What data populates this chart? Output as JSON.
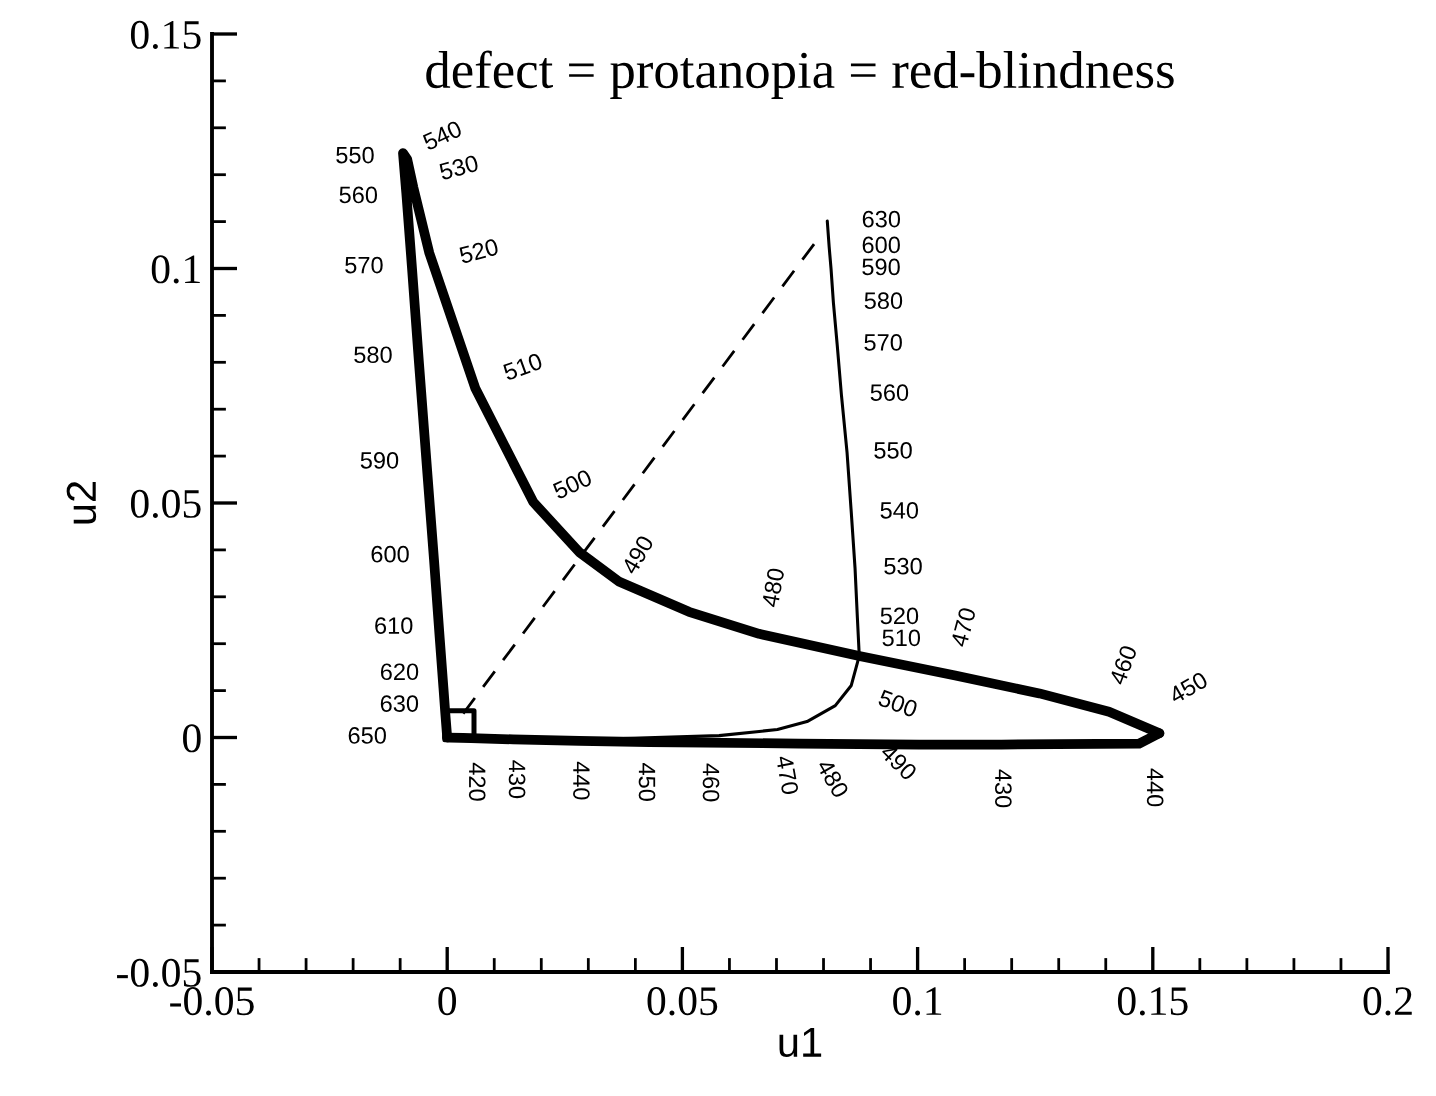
{
  "chart_data": {
    "type": "line",
    "title": "defect = protanopia = red-blindness",
    "xlabel": "u1",
    "ylabel": "u2",
    "xlim": [
      -0.05,
      0.2
    ],
    "ylim": [
      -0.05,
      0.15
    ],
    "xticks": [
      -0.05,
      {
        "value": -0.04,
        "label": null
      },
      {
        "value": -0.03,
        "label": null
      },
      {
        "value": -0.02,
        "label": null
      },
      {
        "value": -0.01,
        "label": null
      },
      0,
      {
        "value": 0.01,
        "label": null
      },
      {
        "value": 0.02,
        "label": null
      },
      {
        "value": 0.03,
        "label": null
      },
      {
        "value": 0.04,
        "label": null
      },
      0.05,
      {
        "value": 0.06,
        "label": null
      },
      {
        "value": 0.07,
        "label": null
      },
      {
        "value": 0.08,
        "label": null
      },
      {
        "value": 0.09,
        "label": null
      },
      0.1,
      {
        "value": 0.11,
        "label": null
      },
      {
        "value": 0.12,
        "label": null
      },
      {
        "value": 0.13,
        "label": null
      },
      {
        "value": 0.14,
        "label": null
      },
      0.15,
      {
        "value": 0.16,
        "label": null
      },
      {
        "value": 0.17,
        "label": null
      },
      {
        "value": 0.18,
        "label": null
      },
      {
        "value": 0.19,
        "label": null
      },
      0.2
    ],
    "yticks": [
      -0.05,
      {
        "value": -0.04,
        "label": null
      },
      {
        "value": -0.03,
        "label": null
      },
      {
        "value": -0.02,
        "label": null
      },
      {
        "value": -0.01,
        "label": null
      },
      0,
      {
        "value": 0.01,
        "label": null
      },
      {
        "value": 0.02,
        "label": null
      },
      {
        "value": 0.03,
        "label": null
      },
      {
        "value": 0.04,
        "label": null
      },
      0.05,
      {
        "value": 0.06,
        "label": null
      },
      {
        "value": 0.07,
        "label": null
      },
      {
        "value": 0.08,
        "label": null
      },
      {
        "value": 0.09,
        "label": null
      },
      0.1,
      {
        "value": 0.11,
        "label": null
      },
      {
        "value": 0.12,
        "label": null
      },
      {
        "value": 0.13,
        "label": null
      },
      {
        "value": 0.14,
        "label": null
      },
      0.15
    ],
    "grid": false,
    "legend": false,
    "series": [
      {
        "color": "#000000",
        "line_style": "solid",
        "x": [
          0,
          -0.0004,
          -0.0008,
          -0.0016,
          -0.0028,
          -0.0042,
          -0.006,
          -0.0075,
          -0.0087,
          -0.0094,
          -0.0085,
          -0.0072,
          -0.0038,
          0.006,
          0.0183,
          0.0281,
          0.0366,
          0.0514,
          0.0663,
          0.0876,
          0.108,
          0.1259,
          0.1407,
          0.1514
        ],
        "values": [
          0,
          0.0051,
          0.0106,
          0.0213,
          0.0378,
          0.0561,
          0.0799,
          0.1003,
          0.1161,
          0.1246,
          0.1233,
          0.1173,
          0.1033,
          0.0744,
          0.0502,
          0.0395,
          0.0332,
          0.0268,
          0.0221,
          0.0174,
          0.0132,
          0.0094,
          0.0055,
          0.0009
        ]
      },
      {
        "color": "#000000",
        "line_style": "solid",
        "x": [
          0,
          0.0034,
          0.014,
          0.0281,
          0.0429,
          0.0548,
          0.0748,
          0.1003,
          0.1178,
          0.1471,
          0.1514
        ],
        "values": [
          0,
          -0.0001,
          -0.0004,
          -0.0007,
          -0.001,
          -0.0011,
          -0.0013,
          -0.0015,
          -0.0015,
          -0.0013,
          0.0009
        ]
      },
      {
        "color": "#000000",
        "line_style": "solid",
        "x": [
          0,
          0.0323,
          0.0578,
          0.0702,
          0.0765,
          0.0825,
          0.0859,
          0.0876,
          0.0872,
          0.0867,
          0.0859,
          0.085,
          0.0838,
          0.0829,
          0.0821,
          0.0816,
          0.0812,
          0.0808
        ],
        "values": [
          0,
          -0.0004,
          0.0004,
          0.0017,
          0.0034,
          0.0068,
          0.0111,
          0.0174,
          0.0255,
          0.0361,
          0.048,
          0.0608,
          0.0731,
          0.0838,
          0.0927,
          0.0999,
          0.1046,
          0.1101
        ]
      },
      {
        "color": "#000000",
        "line_style": "dashed",
        "x": [
          0.0034,
          0.0791
        ],
        "values": [
          0.0051,
          0.1067
        ]
      },
      {
        "type": "scatter",
        "color": "#000000",
        "marker": "square",
        "x": [
          0.0026
        ],
        "values": [
          0.0026
        ]
      }
    ],
    "annotations": [
      {
        "text": "650",
        "x": 0,
        "y": 0
      },
      {
        "text": "630",
        "x": -0.0004,
        "y": 0.0051
      },
      {
        "text": "620",
        "x": -0.0008,
        "y": 0.0106
      },
      {
        "text": "610",
        "x": -0.0016,
        "y": 0.0213
      },
      {
        "text": "600",
        "x": -0.0028,
        "y": 0.0378
      },
      {
        "text": "590",
        "x": -0.0042,
        "y": 0.0561
      },
      {
        "text": "580",
        "x": -0.006,
        "y": 0.0799
      },
      {
        "text": "570",
        "x": -0.0075,
        "y": 0.1003
      },
      {
        "text": "560",
        "x": -0.0087,
        "y": 0.1161
      },
      {
        "text": "550",
        "x": -0.0094,
        "y": 0.1246
      },
      {
        "text": "540",
        "x": -0.0085,
        "y": 0.1233
      },
      {
        "text": "530",
        "x": -0.0072,
        "y": 0.1173
      },
      {
        "text": "520",
        "x": -0.0038,
        "y": 0.1033
      },
      {
        "text": "510",
        "x": 0.006,
        "y": 0.0744
      },
      {
        "text": "500",
        "x": 0.0183,
        "y": 0.0502
      },
      {
        "text": "490",
        "x": 0.0366,
        "y": 0.0332
      },
      {
        "text": "480",
        "x": 0.0663,
        "y": 0.0221
      },
      {
        "text": "470",
        "x": 0.108,
        "y": 0.0132
      },
      {
        "text": "460",
        "x": 0.1407,
        "y": 0.0055
      },
      {
        "text": "450",
        "x": 0.1514,
        "y": 0.0009
      },
      {
        "text": "430",
        "x": 0.1178,
        "y": -0.0015
      },
      {
        "text": "440",
        "x": 0.1471,
        "y": -0.0013
      },
      {
        "text": "420",
        "x": 0.0034,
        "y": -0.0001
      },
      {
        "text": "430",
        "x": 0.014,
        "y": -0.0004
      },
      {
        "text": "440",
        "x": 0.0281,
        "y": -0.0007
      },
      {
        "text": "450",
        "x": 0.0429,
        "y": -0.001
      },
      {
        "text": "460",
        "x": 0.0548,
        "y": -0.0011
      },
      {
        "text": "470",
        "x": 0.0702,
        "y": 0.0017
      },
      {
        "text": "480",
        "x": 0.0765,
        "y": 0.0034
      },
      {
        "text": "490",
        "x": 0.0825,
        "y": 0.0068
      },
      {
        "text": "500",
        "x": 0.0859,
        "y": 0.0111
      },
      {
        "text": "510",
        "x": 0.0876,
        "y": 0.0174
      },
      {
        "text": "520",
        "x": 0.0872,
        "y": 0.0255
      },
      {
        "text": "530",
        "x": 0.0867,
        "y": 0.0361
      },
      {
        "text": "540",
        "x": 0.0859,
        "y": 0.048
      },
      {
        "text": "550",
        "x": 0.085,
        "y": 0.0608
      },
      {
        "text": "560",
        "x": 0.0838,
        "y": 0.0731
      },
      {
        "text": "570",
        "x": 0.0829,
        "y": 0.0838
      },
      {
        "text": "580",
        "x": 0.0821,
        "y": 0.0927
      },
      {
        "text": "590",
        "x": 0.0816,
        "y": 0.0999
      },
      {
        "text": "600",
        "x": 0.0812,
        "y": 0.1046
      },
      {
        "text": "630",
        "x": 0.0808,
        "y": 0.1101
      }
    ]
  }
}
